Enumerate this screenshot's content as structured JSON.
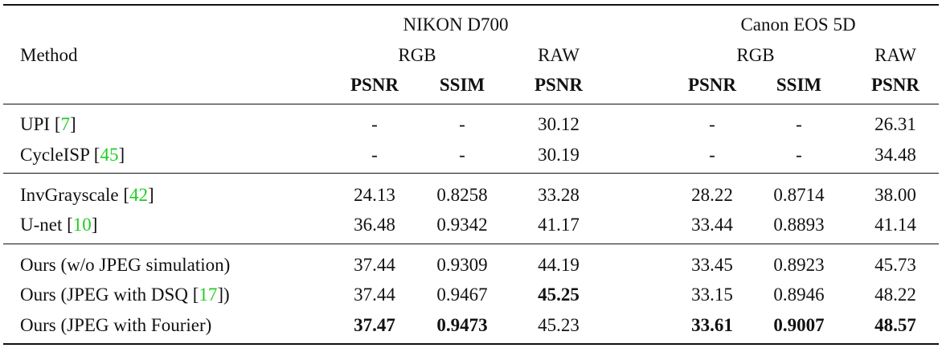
{
  "header": {
    "method_label": "Method",
    "groups": [
      {
        "name": "NIKON D700",
        "rgb_label": "RGB",
        "raw_label": "RAW"
      },
      {
        "name": "Canon EOS 5D",
        "rgb_label": "RGB",
        "raw_label": "RAW"
      }
    ],
    "metrics": [
      "PSNR",
      "SSIM",
      "PSNR",
      "PSNR",
      "SSIM",
      "PSNR"
    ]
  },
  "rows": [
    {
      "method": "UPI",
      "cite": "7",
      "values": [
        "-",
        "-",
        "30.12",
        "-",
        "-",
        "26.31"
      ],
      "bold": [
        false,
        false,
        false,
        false,
        false,
        false
      ]
    },
    {
      "method": "CycleISP",
      "cite": "45",
      "values": [
        "-",
        "-",
        "30.19",
        "-",
        "-",
        "34.48"
      ],
      "bold": [
        false,
        false,
        false,
        false,
        false,
        false
      ]
    },
    {
      "method": "InvGrayscale",
      "cite": "42",
      "values": [
        "24.13",
        "0.8258",
        "33.28",
        "28.22",
        "0.8714",
        "38.00"
      ],
      "bold": [
        false,
        false,
        false,
        false,
        false,
        false
      ]
    },
    {
      "method": "U-net",
      "cite": "10",
      "values": [
        "36.48",
        "0.9342",
        "41.17",
        "33.44",
        "0.8893",
        "41.14"
      ],
      "bold": [
        false,
        false,
        false,
        false,
        false,
        false
      ]
    },
    {
      "method": "Ours (w/o JPEG simulation)",
      "cite": "",
      "values": [
        "37.44",
        "0.9309",
        "44.19",
        "33.45",
        "0.8923",
        "45.73"
      ],
      "bold": [
        false,
        false,
        false,
        false,
        false,
        false
      ]
    },
    {
      "method": "Ours (JPEG with DSQ ",
      "cite": "17",
      "suffix": ")",
      "values": [
        "37.44",
        "0.9467",
        "45.25",
        "33.15",
        "0.8946",
        "48.22"
      ],
      "bold": [
        false,
        false,
        true,
        false,
        false,
        false
      ]
    },
    {
      "method": "Ours (JPEG with Fourier)",
      "cite": "",
      "values": [
        "37.47",
        "0.9473",
        "45.23",
        "33.61",
        "0.9007",
        "48.57"
      ],
      "bold": [
        true,
        true,
        false,
        true,
        true,
        true
      ]
    }
  ]
}
